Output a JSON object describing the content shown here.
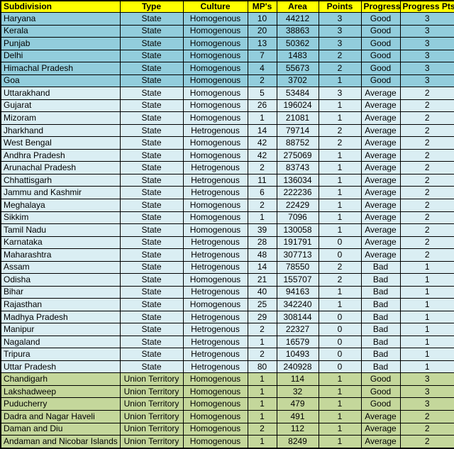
{
  "colors": {
    "header_bg": "#FFFF00",
    "row_blue": "#92CDDC",
    "row_light": "#DAEEF3",
    "row_green": "#C4D79B",
    "border": "#000000",
    "text": "#000000"
  },
  "chart_data": {
    "type": "table",
    "columns": [
      "Subdivision",
      "Type",
      "Culture",
      "MP's",
      "Area",
      "Points",
      "Progress",
      "Progress Pts"
    ],
    "rows": [
      {
        "group": "blue",
        "cells": [
          "Haryana",
          "State",
          "Homogenous",
          "10",
          "44212",
          "3",
          "Good",
          "3"
        ]
      },
      {
        "group": "blue",
        "cells": [
          "Kerala",
          "State",
          "Homogenous",
          "20",
          "38863",
          "3",
          "Good",
          "3"
        ]
      },
      {
        "group": "blue",
        "cells": [
          "Punjab",
          "State",
          "Homogenous",
          "13",
          "50362",
          "3",
          "Good",
          "3"
        ]
      },
      {
        "group": "blue",
        "cells": [
          "Delhi",
          "State",
          "Homogenous",
          "7",
          "1483",
          "2",
          "Good",
          "3"
        ]
      },
      {
        "group": "blue",
        "cells": [
          "Himachal Pradesh",
          "State",
          "Homogenous",
          "4",
          "55673",
          "2",
          "Good",
          "3"
        ]
      },
      {
        "group": "blue",
        "cells": [
          "Goa",
          "State",
          "Homogenous",
          "2",
          "3702",
          "1",
          "Good",
          "3"
        ]
      },
      {
        "group": "light",
        "cells": [
          "Uttarakhand",
          "State",
          "Homogenous",
          "5",
          "53484",
          "3",
          "Average",
          "2"
        ]
      },
      {
        "group": "light",
        "cells": [
          "Gujarat",
          "State",
          "Homogenous",
          "26",
          "196024",
          "1",
          "Average",
          "2"
        ]
      },
      {
        "group": "light",
        "cells": [
          "Mizoram",
          "State",
          "Homogenous",
          "1",
          "21081",
          "1",
          "Average",
          "2"
        ]
      },
      {
        "group": "light",
        "cells": [
          "Jharkhand",
          "State",
          "Hetrogenous",
          "14",
          "79714",
          "2",
          "Average",
          "2"
        ]
      },
      {
        "group": "light",
        "cells": [
          "West Bengal",
          "State",
          "Homogenous",
          "42",
          "88752",
          "2",
          "Average",
          "2"
        ]
      },
      {
        "group": "light",
        "cells": [
          "Andhra Pradesh",
          "State",
          "Homogenous",
          "42",
          "275069",
          "1",
          "Average",
          "2"
        ]
      },
      {
        "group": "light",
        "cells": [
          "Arunachal Pradesh",
          "State",
          "Hetrogenous",
          "2",
          "83743",
          "1",
          "Average",
          "2"
        ]
      },
      {
        "group": "light",
        "cells": [
          "Chhattisgarh",
          "State",
          "Hetrogenous",
          "11",
          "136034",
          "1",
          "Average",
          "2"
        ]
      },
      {
        "group": "light",
        "cells": [
          "Jammu and Kashmir",
          "State",
          "Hetrogenous",
          "6",
          "222236",
          "1",
          "Average",
          "2"
        ]
      },
      {
        "group": "light",
        "cells": [
          "Meghalaya",
          "State",
          "Homogenous",
          "2",
          "22429",
          "1",
          "Average",
          "2"
        ]
      },
      {
        "group": "light",
        "cells": [
          "Sikkim",
          "State",
          "Homogenous",
          "1",
          "7096",
          "1",
          "Average",
          "2"
        ]
      },
      {
        "group": "light",
        "cells": [
          "Tamil Nadu",
          "State",
          "Homogenous",
          "39",
          "130058",
          "1",
          "Average",
          "2"
        ]
      },
      {
        "group": "light",
        "cells": [
          "Karnataka",
          "State",
          "Hetrogenous",
          "28",
          "191791",
          "0",
          "Average",
          "2"
        ]
      },
      {
        "group": "light",
        "cells": [
          "Maharashtra",
          "State",
          "Hetrogenous",
          "48",
          "307713",
          "0",
          "Average",
          "2"
        ]
      },
      {
        "group": "light",
        "cells": [
          "Assam",
          "State",
          "Hetrogenous",
          "14",
          "78550",
          "2",
          "Bad",
          "1"
        ]
      },
      {
        "group": "light",
        "cells": [
          "Odisha",
          "State",
          "Homogenous",
          "21",
          "155707",
          "2",
          "Bad",
          "1"
        ]
      },
      {
        "group": "light",
        "cells": [
          "Bihar",
          "State",
          "Hetrogenous",
          "40",
          "94163",
          "1",
          "Bad",
          "1"
        ]
      },
      {
        "group": "light",
        "cells": [
          "Rajasthan",
          "State",
          "Homogenous",
          "25",
          "342240",
          "1",
          "Bad",
          "1"
        ]
      },
      {
        "group": "light",
        "cells": [
          "Madhya Pradesh",
          "State",
          "Hetrogenous",
          "29",
          "308144",
          "0",
          "Bad",
          "1"
        ]
      },
      {
        "group": "light",
        "cells": [
          "Manipur",
          "State",
          "Hetrogenous",
          "2",
          "22327",
          "0",
          "Bad",
          "1"
        ]
      },
      {
        "group": "light",
        "cells": [
          "Nagaland",
          "State",
          "Hetrogenous",
          "1",
          "16579",
          "0",
          "Bad",
          "1"
        ]
      },
      {
        "group": "light",
        "cells": [
          "Tripura",
          "State",
          "Hetrogenous",
          "2",
          "10493",
          "0",
          "Bad",
          "1"
        ]
      },
      {
        "group": "light",
        "cells": [
          "Uttar Pradesh",
          "State",
          "Hetrogenous",
          "80",
          "240928",
          "0",
          "Bad",
          "1"
        ]
      },
      {
        "group": "green",
        "cells": [
          "Chandigarh",
          "Union Territory",
          "Homogenous",
          "1",
          "114",
          "1",
          "Good",
          "3"
        ]
      },
      {
        "group": "green",
        "cells": [
          "Lakshadweep",
          "Union Territory",
          "Homogenous",
          "1",
          "32",
          "1",
          "Good",
          "3"
        ]
      },
      {
        "group": "green",
        "cells": [
          "Puducherry",
          "Union Territory",
          "Homogenous",
          "1",
          "479",
          "1",
          "Good",
          "3"
        ]
      },
      {
        "group": "green",
        "cells": [
          "Dadra and Nagar Haveli",
          "Union Territory",
          "Homogenous",
          "1",
          "491",
          "1",
          "Average",
          "2"
        ]
      },
      {
        "group": "green",
        "cells": [
          "Daman and Diu",
          "Union Territory",
          "Homogenous",
          "2",
          "112",
          "1",
          "Average",
          "2"
        ]
      },
      {
        "group": "green",
        "cells": [
          "Andaman and Nicobar Islands",
          "Union Territory",
          "Homogenous",
          "1",
          "8249",
          "1",
          "Average",
          "2"
        ]
      }
    ]
  }
}
